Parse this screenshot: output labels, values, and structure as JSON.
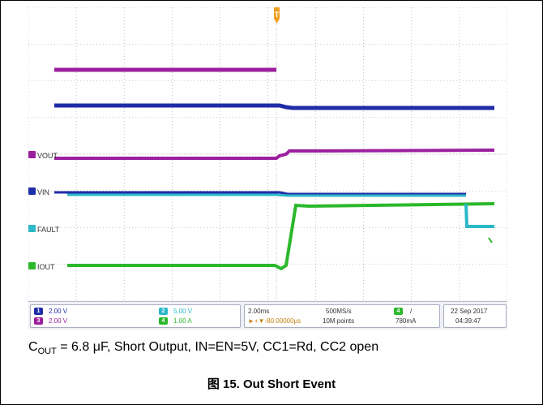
{
  "colors": {
    "ch1_vin": "#1f2ca8",
    "ch2_fault": "#2bb8c8",
    "ch3_vout": "#9b1f9e",
    "ch4_iout": "#2bb82b",
    "trigger": "#f0a020",
    "grid": "#9a9a9a"
  },
  "traces": {
    "vout": {
      "label": "VOUT",
      "channel": "3",
      "color": "#9b1f9e"
    },
    "vin": {
      "label": "VIN",
      "channel": "1",
      "color": "#1f2ca8"
    },
    "fault": {
      "label": "FAULT",
      "channel": "2",
      "color": "#2bb8c8"
    },
    "iout": {
      "label": "IOUT",
      "channel": "4",
      "color": "#2bb82b"
    },
    "trigger_marker": "T"
  },
  "scope_status": {
    "ch1": {
      "badge": "1",
      "scale": "2.00 V"
    },
    "ch3": {
      "badge": "3",
      "scale": "2.00 V"
    },
    "ch2": {
      "badge": "2",
      "scale": "5.00 V"
    },
    "ch4": {
      "badge": "4",
      "scale": "1.00 A"
    },
    "timebase": "2.00ms",
    "delay": "►+▼-80.00000μs",
    "sample_rate": "500MS/s",
    "record_length": "10M points",
    "trigger_channel_badge": "4",
    "trigger_slope": "/",
    "trigger_level": "780mA",
    "date": "22 Sep 2017",
    "time": "04:39:47"
  },
  "caption": {
    "c_prefix": "C",
    "c_sub": "OUT",
    "c_rest": " = 6.8 μF, Short Output, IN=EN=5V, CC1=Rd, CC2 open"
  },
  "figure_title": "图 15. Out Short Event"
}
